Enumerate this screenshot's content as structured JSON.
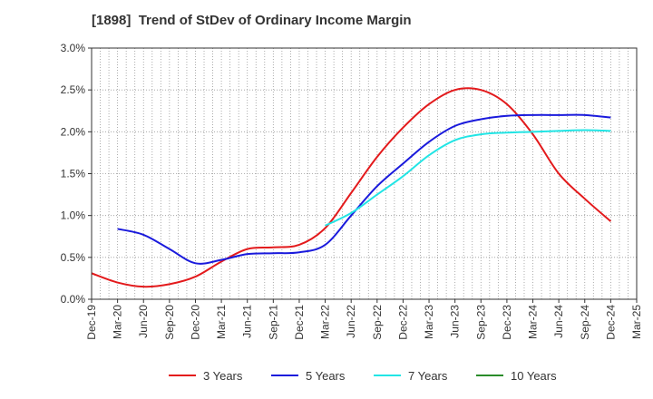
{
  "chart_data": {
    "type": "line",
    "title": "[1898]  Trend of StDev of Ordinary Income Margin",
    "xlabel": "",
    "ylabel": "",
    "x_ticks": [
      "Dec-19",
      "Mar-20",
      "Jun-20",
      "Sep-20",
      "Dec-20",
      "Mar-21",
      "Jun-21",
      "Sep-21",
      "Dec-21",
      "Mar-22",
      "Jun-22",
      "Sep-22",
      "Dec-22",
      "Mar-23",
      "Jun-23",
      "Sep-23",
      "Dec-23",
      "Mar-24",
      "Jun-24",
      "Sep-24",
      "Dec-24",
      "Mar-25"
    ],
    "y_ticks": [
      "0.0%",
      "0.5%",
      "1.0%",
      "1.5%",
      "2.0%",
      "2.5%",
      "3.0%"
    ],
    "ylim": [
      0,
      3.0
    ],
    "y_unit": "%",
    "grid": true,
    "legend_position": "bottom",
    "series": [
      {
        "name": "3 Years",
        "color": "#e31a1c",
        "points": [
          [
            "Dec-19",
            0.31
          ],
          [
            "Mar-20",
            0.2
          ],
          [
            "Jun-20",
            0.15
          ],
          [
            "Sep-20",
            0.18
          ],
          [
            "Dec-20",
            0.27
          ],
          [
            "Mar-21",
            0.45
          ],
          [
            "Jun-21",
            0.6
          ],
          [
            "Sep-21",
            0.62
          ],
          [
            "Dec-21",
            0.65
          ],
          [
            "Mar-22",
            0.85
          ],
          [
            "Jun-22",
            1.27
          ],
          [
            "Sep-22",
            1.7
          ],
          [
            "Dec-22",
            2.05
          ],
          [
            "Mar-23",
            2.33
          ],
          [
            "Jun-23",
            2.5
          ],
          [
            "Sep-23",
            2.5
          ],
          [
            "Dec-23",
            2.33
          ],
          [
            "Mar-24",
            1.97
          ],
          [
            "Jun-24",
            1.5
          ],
          [
            "Sep-24",
            1.2
          ],
          [
            "Dec-24",
            0.93
          ]
        ]
      },
      {
        "name": "5 Years",
        "color": "#1a1adc",
        "points": [
          [
            "Mar-20",
            0.84
          ],
          [
            "Jun-20",
            0.77
          ],
          [
            "Sep-20",
            0.6
          ],
          [
            "Dec-20",
            0.43
          ],
          [
            "Mar-21",
            0.47
          ],
          [
            "Jun-21",
            0.54
          ],
          [
            "Sep-21",
            0.55
          ],
          [
            "Dec-21",
            0.56
          ],
          [
            "Mar-22",
            0.65
          ],
          [
            "Jun-22",
            1.0
          ],
          [
            "Sep-22",
            1.35
          ],
          [
            "Dec-22",
            1.62
          ],
          [
            "Mar-23",
            1.88
          ],
          [
            "Jun-23",
            2.07
          ],
          [
            "Sep-23",
            2.15
          ],
          [
            "Dec-23",
            2.19
          ],
          [
            "Mar-24",
            2.2
          ],
          [
            "Jun-24",
            2.2
          ],
          [
            "Sep-24",
            2.2
          ],
          [
            "Dec-24",
            2.17
          ]
        ]
      },
      {
        "name": "7 Years",
        "color": "#22e5e5",
        "points": [
          [
            "Mar-22",
            0.88
          ],
          [
            "Jun-22",
            1.03
          ],
          [
            "Sep-22",
            1.25
          ],
          [
            "Dec-22",
            1.47
          ],
          [
            "Mar-23",
            1.72
          ],
          [
            "Jun-23",
            1.9
          ],
          [
            "Sep-23",
            1.97
          ],
          [
            "Dec-23",
            1.99
          ],
          [
            "Mar-24",
            2.0
          ],
          [
            "Jun-24",
            2.01
          ],
          [
            "Sep-24",
            2.02
          ],
          [
            "Dec-24",
            2.01
          ]
        ]
      },
      {
        "name": "10 Years",
        "color": "#2a8c2a",
        "points": []
      }
    ]
  }
}
